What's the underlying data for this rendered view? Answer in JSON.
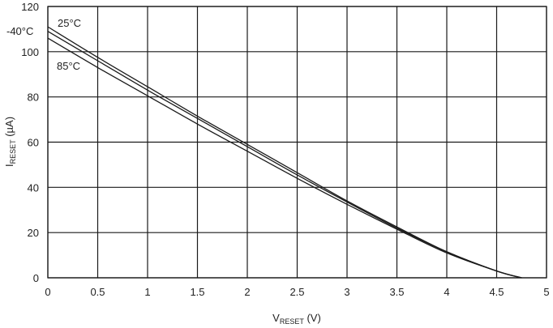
{
  "chart_data": {
    "type": "line",
    "title": "",
    "xlabel": {
      "main": "V",
      "sub": "RESET",
      "unit": " (V)"
    },
    "ylabel": {
      "main": "I",
      "sub": "RESET",
      "unit": " (µA)"
    },
    "xlim": [
      0,
      5
    ],
    "ylim": [
      0,
      120
    ],
    "xticks": [
      0,
      0.5,
      1,
      1.5,
      2,
      2.5,
      3,
      3.5,
      4,
      4.5,
      5
    ],
    "xtick_labels": [
      "0",
      "0.5",
      "1",
      "1.5",
      "2",
      "2.5",
      "3",
      "3.5",
      "4",
      "4.5",
      "5"
    ],
    "yticks": [
      0,
      20,
      40,
      60,
      80,
      100,
      120
    ],
    "ytick_labels": [
      "0",
      "20",
      "40",
      "60",
      "80",
      "100",
      "120"
    ],
    "grid": true,
    "series": [
      {
        "name": "25°C",
        "x": [
          0,
          0.5,
          1,
          1.5,
          2,
          2.5,
          3,
          3.5,
          4,
          4.5,
          4.75
        ],
        "y": [
          111,
          97.5,
          84.5,
          71.5,
          59,
          46.5,
          34,
          22.5,
          11.5,
          3,
          0
        ]
      },
      {
        "name": "-40°C",
        "x": [
          0,
          0.5,
          1,
          1.5,
          2,
          2.5,
          3,
          3.5,
          4,
          4.5,
          4.75
        ],
        "y": [
          109,
          96,
          83,
          70.5,
          58,
          45.5,
          33.5,
          22,
          11.5,
          3,
          0
        ]
      },
      {
        "name": "85°C",
        "x": [
          0,
          0.5,
          1,
          1.5,
          2,
          2.5,
          3,
          3.5,
          4,
          4.5,
          4.75
        ],
        "y": [
          106,
          93,
          80.5,
          68,
          56,
          44,
          32.5,
          21.5,
          11,
          3,
          0
        ]
      }
    ],
    "colors": {
      "line": "#1a1a1a",
      "grid": "#1a1a1a",
      "text": "#222222"
    }
  }
}
